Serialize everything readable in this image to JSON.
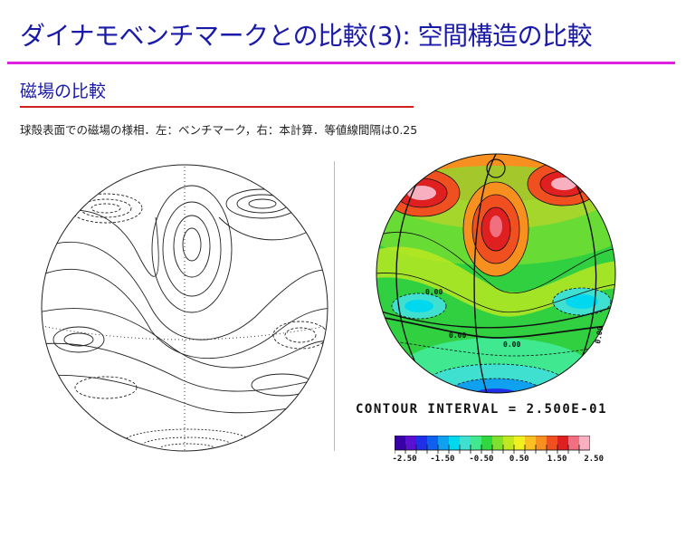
{
  "title": "ダイナモベンチマークとの比較(3): 空間構造の比較",
  "subtitle": "磁場の比較",
  "caption": "球殻表面での磁場の様相．左：ベンチマーク，右：本計算．等値線間隔は0.25",
  "right_panel": {
    "contour_interval_label": "CONTOUR INTERVAL = 2.500E-01",
    "contour_labels": [
      "0.00",
      "0.00",
      "0.00",
      "0.00"
    ],
    "colorbar_ticks": [
      "-2.50",
      "-1.50",
      "-0.50",
      "0.50",
      "1.50",
      "2.50"
    ],
    "colorbar_colors": [
      "#3a00a8",
      "#5a10d0",
      "#2030e8",
      "#1060f0",
      "#10a0f0",
      "#00d8f0",
      "#40e0d0",
      "#40e890",
      "#30d840",
      "#80e030",
      "#c0e820",
      "#f0f020",
      "#f8c020",
      "#f89020",
      "#f05020",
      "#e02020",
      "#f07080",
      "#f8b0c0"
    ]
  },
  "colors": {
    "title": "#1a1aa8",
    "accent_rule": "#e020e0",
    "subtitle_rule": "#d02020"
  }
}
